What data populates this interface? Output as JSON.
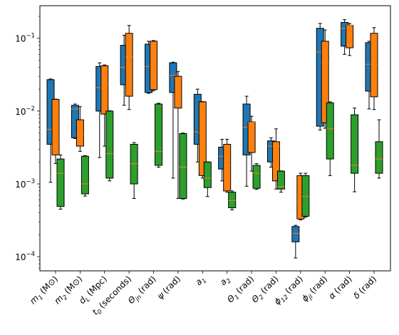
{
  "chart_data": {
    "type": "boxplot",
    "categories": [
      {
        "symbol": "m",
        "sub": "1",
        "unit": "(M⊙)"
      },
      {
        "symbol": "m",
        "sub": "2",
        "unit": "(M⊙)"
      },
      {
        "symbol": "d",
        "sub": "L",
        "unit": "(Mpc)"
      },
      {
        "symbol": "t",
        "sub": "0",
        "unit": "(seconds)"
      },
      {
        "symbol": "Θ",
        "sub": "jn",
        "unit": "(rad)"
      },
      {
        "symbol": "ψ",
        "unit": "(rad)"
      },
      {
        "symbol": "a",
        "sub": "1"
      },
      {
        "symbol": "a",
        "sub": "2"
      },
      {
        "symbol": "Θ",
        "sub": "1",
        "unit": "(rad)"
      },
      {
        "symbol": "Θ",
        "sub": "2",
        "unit": "(rad)"
      },
      {
        "symbol": "ϕ",
        "sub": "12",
        "unit": "(rad)"
      },
      {
        "symbol": "ϕ",
        "sub": "jl",
        "unit": "(rad)"
      },
      {
        "symbol": "α",
        "unit": "(rad)"
      },
      {
        "symbol": "δ",
        "unit": "(rad)"
      }
    ],
    "series": [
      {
        "color": "#1f77b4",
        "values": [
          [
            0.00105,
            0.0035,
            0.0056,
            0.027,
            0.0276
          ],
          [
            0.0042,
            0.0043,
            0.0107,
            0.012,
            0.0125
          ],
          [
            0.0023,
            0.01,
            0.021,
            0.041,
            0.046
          ],
          [
            0.012,
            0.023,
            0.04,
            0.08,
            0.11
          ],
          [
            0.0175,
            0.018,
            0.041,
            0.083,
            0.091
          ],
          [
            0.0012,
            0.018,
            0.031,
            0.046,
            0.047
          ],
          [
            0.002,
            0.0035,
            0.0052,
            0.017,
            0.02
          ],
          [
            0.0011,
            0.0016,
            0.0024,
            0.0032,
            0.0041
          ],
          [
            0.00093,
            0.0025,
            0.006,
            0.0125,
            0.016
          ],
          [
            0.0017,
            0.002,
            0.0033,
            0.0039,
            0.0043
          ],
          [
            9.6e-05,
            0.00016,
            0.00021,
            0.00026,
            0.00027
          ],
          [
            0.0055,
            0.0062,
            0.065,
            0.137,
            0.16
          ],
          [
            0.06,
            0.078,
            0.137,
            0.165,
            0.18
          ],
          [
            0.0107,
            0.0188,
            0.044,
            0.087,
            0.091
          ]
        ]
      },
      {
        "color": "#ff7f0e",
        "values": [
          [
            0.0019,
            0.0025,
            0.0039,
            0.0145,
            0.0146
          ],
          [
            0.0028,
            0.0033,
            0.0047,
            0.0076,
            0.0115
          ],
          [
            0.0033,
            0.0091,
            0.024,
            0.042,
            0.043
          ],
          [
            0.0105,
            0.016,
            0.056,
            0.117,
            0.15
          ],
          [
            0.019,
            0.0197,
            0.044,
            0.091,
            0.093
          ],
          [
            0.00063,
            0.011,
            0.028,
            0.03,
            0.035
          ],
          [
            0.0012,
            0.0013,
            0.005,
            0.0134,
            0.0135
          ],
          [
            0.00077,
            0.0008,
            0.0018,
            0.0035,
            0.0041
          ],
          [
            0.0015,
            0.0027,
            0.007,
            0.0071,
            0.0085
          ],
          [
            0.00085,
            0.0011,
            0.0033,
            0.0038,
            0.0057
          ],
          [
            0.00032,
            0.00033,
            0.00057,
            0.0013,
            0.0014
          ],
          [
            0.0058,
            0.0069,
            0.046,
            0.091,
            0.13
          ],
          [
            0.058,
            0.074,
            0.15,
            0.151,
            0.16
          ],
          [
            0.0105,
            0.0157,
            0.044,
            0.117,
            0.14
          ]
        ]
      },
      {
        "color": "#2ca02c",
        "values": [
          [
            0.00045,
            0.00049,
            0.0014,
            0.0022,
            0.0025
          ],
          [
            0.00068,
            0.00073,
            0.001,
            0.0024,
            0.00245
          ],
          [
            0.0011,
            0.0012,
            0.0026,
            0.01,
            0.0101
          ],
          [
            0.00063,
            0.001,
            0.0019,
            0.0035,
            0.0037
          ],
          [
            0.0017,
            0.0018,
            0.0028,
            0.0125,
            0.0128
          ],
          [
            0.00062,
            0.00063,
            0.0017,
            0.0049,
            0.005
          ],
          [
            0.00067,
            0.00089,
            0.0012,
            0.002,
            0.00201
          ],
          [
            0.00044,
            0.00047,
            0.00059,
            0.00077,
            0.0008
          ],
          [
            0.00084,
            0.00087,
            0.0014,
            0.0018,
            0.0019
          ],
          [
            0.00077,
            0.00085,
            0.00092,
            0.0015,
            0.00151
          ],
          [
            0.00035,
            0.00036,
            0.00067,
            0.0013,
            0.0014
          ],
          [
            0.0013,
            0.0022,
            0.0057,
            0.013,
            0.0134
          ],
          [
            0.00078,
            0.0014,
            0.0018,
            0.0089,
            0.011
          ],
          [
            0.0012,
            0.0014,
            0.0022,
            0.0038,
            0.0076
          ]
        ]
      }
    ],
    "median_color": "#ff7f0e",
    "log_y": true,
    "ylim": [
      6.4e-05,
      0.28
    ],
    "yticks": [
      {
        "value": 0.0001,
        "label": "10",
        "exponent": "−4"
      },
      {
        "value": 0.001,
        "label": "10",
        "exponent": "−3"
      },
      {
        "value": 0.01,
        "label": "10",
        "exponent": "−2"
      },
      {
        "value": 0.1,
        "label": "10",
        "exponent": "−1"
      }
    ],
    "yminorticks": [
      7e-05,
      8e-05,
      9e-05,
      0.0002,
      0.0003,
      0.0004,
      0.0005,
      0.0006,
      0.0007,
      0.0008,
      0.0009,
      0.002,
      0.003,
      0.004,
      0.005,
      0.006,
      0.007,
      0.008,
      0.009,
      0.02,
      0.03,
      0.04,
      0.05,
      0.06,
      0.07,
      0.08,
      0.09,
      0.2
    ]
  }
}
